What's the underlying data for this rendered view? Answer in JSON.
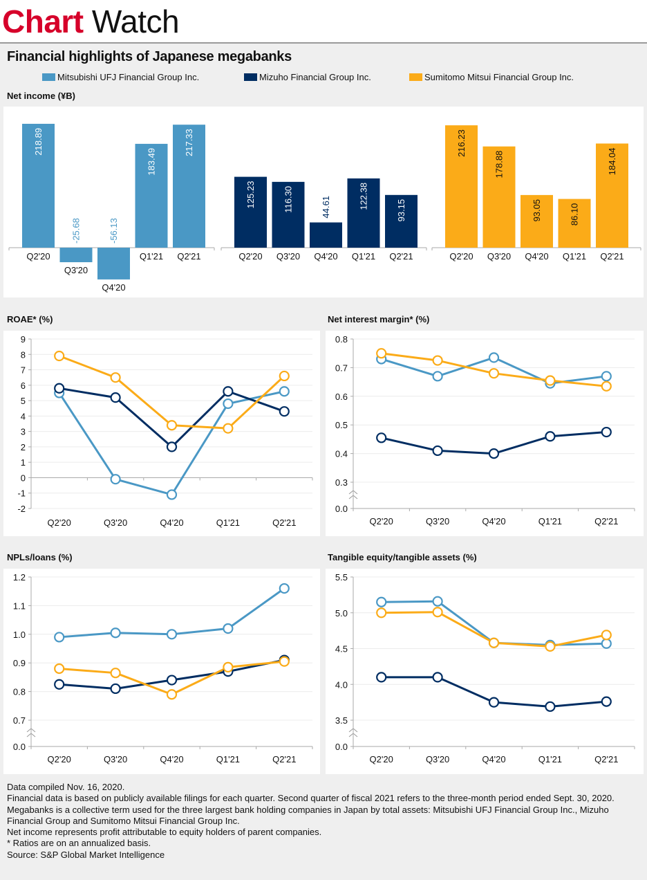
{
  "header": {
    "brand_part1": "Chart",
    "brand_part2": "Watch",
    "brand_color": "#d6002a"
  },
  "title": "Financial highlights of Japanese megabanks",
  "legend": [
    {
      "name": "Mitsubishi UFJ Financial Group Inc.",
      "color": "#4a98c5"
    },
    {
      "name": "Mizuho Financial Group Inc.",
      "color": "#002d62"
    },
    {
      "name": "Sumitomo Mitsui Financial Group Inc.",
      "color": "#fbab18"
    }
  ],
  "chart_data": [
    {
      "id": "net_income",
      "type": "bar",
      "title": "Net income (¥B)",
      "categories": [
        "Q2'20",
        "Q3'20",
        "Q4'20",
        "Q1'21",
        "Q2'21"
      ],
      "series": [
        {
          "name": "Mitsubishi UFJ Financial Group Inc.",
          "values": [
            218.89,
            -25.68,
            -56.13,
            183.49,
            217.33
          ],
          "labels": [
            "218.89",
            "-25.68",
            "-56.13",
            "183.49",
            "217.33"
          ]
        },
        {
          "name": "Mizuho Financial Group Inc.",
          "values": [
            125.23,
            116.3,
            44.61,
            122.38,
            93.15
          ],
          "labels": [
            "125.23",
            "116.30",
            "44.61",
            "122.38",
            "93.15"
          ]
        },
        {
          "name": "Sumitomo Mitsui Financial Group Inc.",
          "values": [
            216.23,
            178.88,
            93.05,
            86.1,
            184.04
          ],
          "labels": [
            "216.23",
            "178.88",
            "93.05",
            "86.10",
            "184.04"
          ]
        }
      ],
      "grid": false
    },
    {
      "id": "roae",
      "type": "line",
      "title": "ROAE* (%)",
      "categories": [
        "Q2'20",
        "Q3'20",
        "Q4'20",
        "Q1'21",
        "Q2'21"
      ],
      "ylim": [
        -2,
        9
      ],
      "yticks": [
        -2,
        -1,
        0,
        1,
        2,
        3,
        4,
        5,
        6,
        7,
        8,
        9
      ],
      "ytick_labels": [
        "-2",
        "-1",
        "0",
        "1",
        "2",
        "3",
        "4",
        "5",
        "6",
        "7",
        "8",
        "9"
      ],
      "axis_break": false,
      "series": [
        {
          "name": "Mitsubishi UFJ Financial Group Inc.",
          "values": [
            5.5,
            -0.1,
            -1.1,
            4.8,
            5.6
          ]
        },
        {
          "name": "Mizuho Financial Group Inc.",
          "values": [
            5.8,
            5.2,
            2.0,
            5.6,
            4.3
          ]
        },
        {
          "name": "Sumitomo Mitsui Financial Group Inc.",
          "values": [
            7.9,
            6.5,
            3.4,
            3.2,
            6.6
          ]
        }
      ],
      "grid": true
    },
    {
      "id": "nim",
      "type": "line",
      "title": "Net interest margin* (%)",
      "categories": [
        "Q2'20",
        "Q3'20",
        "Q4'20",
        "Q1'21",
        "Q2'21"
      ],
      "ylim": [
        0.2,
        0.8
      ],
      "yticks": [
        0.3,
        0.4,
        0.5,
        0.6,
        0.7,
        0.8
      ],
      "ytick_labels": [
        "0.3",
        "0.4",
        "0.5",
        "0.6",
        "0.7",
        "0.8"
      ],
      "axis_break": true,
      "break_base_label": "0.0",
      "series": [
        {
          "name": "Mitsubishi UFJ Financial Group Inc.",
          "values": [
            0.73,
            0.67,
            0.735,
            0.645,
            0.67
          ]
        },
        {
          "name": "Mizuho Financial Group Inc.",
          "values": [
            0.455,
            0.41,
            0.4,
            0.46,
            0.475
          ]
        },
        {
          "name": "Sumitomo Mitsui Financial Group Inc.",
          "values": [
            0.75,
            0.725,
            0.68,
            0.655,
            0.635
          ]
        }
      ],
      "grid": true
    },
    {
      "id": "npl",
      "type": "line",
      "title": "NPLs/loans (%)",
      "categories": [
        "Q2'20",
        "Q3'20",
        "Q4'20",
        "Q1'21",
        "Q2'21"
      ],
      "ylim": [
        0.6,
        1.2
      ],
      "yticks": [
        0.7,
        0.8,
        0.9,
        1.0,
        1.1,
        1.2
      ],
      "ytick_labels": [
        "0.7",
        "0.8",
        "0.9",
        "1.0",
        "1.1",
        "1.2"
      ],
      "axis_break": true,
      "break_base_label": "0.0",
      "series": [
        {
          "name": "Mitsubishi UFJ Financial Group Inc.",
          "values": [
            0.99,
            1.005,
            1.0,
            1.02,
            1.16
          ]
        },
        {
          "name": "Mizuho Financial Group Inc.",
          "values": [
            0.825,
            0.81,
            0.84,
            0.87,
            0.91
          ]
        },
        {
          "name": "Sumitomo Mitsui Financial Group Inc.",
          "values": [
            0.88,
            0.865,
            0.79,
            0.885,
            0.905
          ]
        }
      ],
      "grid": true
    },
    {
      "id": "tce",
      "type": "line",
      "title": "Tangible equity/tangible assets (%)",
      "categories": [
        "Q2'20",
        "Q3'20",
        "Q4'20",
        "Q1'21",
        "Q2'21"
      ],
      "ylim": [
        3.0,
        5.5
      ],
      "yticks": [
        3.5,
        4.0,
        4.5,
        5.0,
        5.5
      ],
      "ytick_labels": [
        "3.5",
        "4.0",
        "4.5",
        "5.0",
        "5.5"
      ],
      "axis_break": true,
      "break_base_label": "0.0",
      "series": [
        {
          "name": "Mitsubishi UFJ Financial Group Inc.",
          "values": [
            5.15,
            5.16,
            4.58,
            4.55,
            4.57
          ]
        },
        {
          "name": "Mizuho Financial Group Inc.",
          "values": [
            4.1,
            4.1,
            3.75,
            3.69,
            3.76
          ]
        },
        {
          "name": "Sumitomo Mitsui Financial Group Inc.",
          "values": [
            5.0,
            5.01,
            4.58,
            4.53,
            4.69
          ]
        }
      ],
      "grid": true
    }
  ],
  "notes": [
    "Data compiled Nov. 16, 2020.",
    "Financial data is based on publicly available filings for each quarter. Second quarter of fiscal 2021 refers to the three-month period ended Sept. 30, 2020.",
    "Megabanks is a collective term used for the three largest bank holding companies in Japan by total assets: Mitsubishi UFJ Financial Group Inc., Mizuho Financial Group and Sumitomo Mitsui Financial Group Inc.",
    "Net income represents profit attributable to equity holders of parent companies.",
    "* Ratios are on an annualized basis.",
    "Source: S&P Global Market Intelligence"
  ]
}
